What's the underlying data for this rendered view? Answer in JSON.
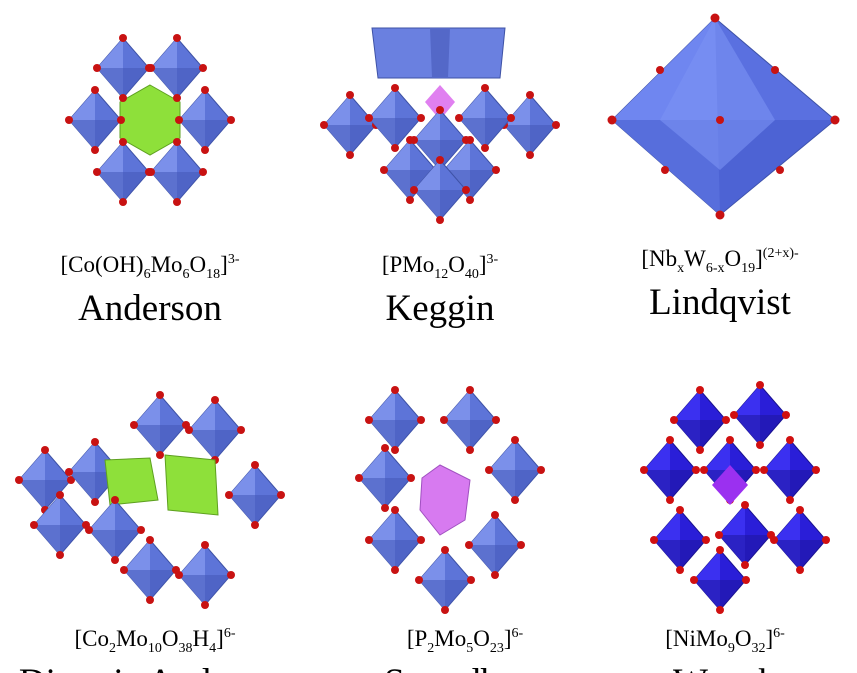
{
  "items": [
    {
      "formula": [
        {
          "text": "[Co(OH)",
          "style": "base"
        },
        {
          "text": "6",
          "style": "sub"
        },
        {
          "text": "Mo",
          "style": "base"
        },
        {
          "text": "6",
          "style": "sub"
        },
        {
          "text": "O",
          "style": "base"
        },
        {
          "text": "18",
          "style": "sub"
        },
        {
          "text": "]",
          "style": "base"
        },
        {
          "text": "3-",
          "style": "sup"
        }
      ],
      "name": "Anderson"
    },
    {
      "formula": [
        {
          "text": "[PMo",
          "style": "base"
        },
        {
          "text": "12",
          "style": "sub"
        },
        {
          "text": "O",
          "style": "base"
        },
        {
          "text": "40",
          "style": "sub"
        },
        {
          "text": "]",
          "style": "base"
        },
        {
          "text": "3-",
          "style": "sup"
        }
      ],
      "name": "Keggin"
    },
    {
      "formula": [
        {
          "text": "[Nb",
          "style": "base"
        },
        {
          "text": "x",
          "style": "sub"
        },
        {
          "text": "W",
          "style": "base"
        },
        {
          "text": "6-x",
          "style": "sub"
        },
        {
          "text": "O",
          "style": "base"
        },
        {
          "text": "19",
          "style": "sub"
        },
        {
          "text": "]",
          "style": "base"
        },
        {
          "text": "(2+x)-",
          "style": "sup"
        }
      ],
      "name": "Lindqvist"
    },
    {
      "formula": [
        {
          "text": "[Co",
          "style": "base"
        },
        {
          "text": "2",
          "style": "sub"
        },
        {
          "text": "Mo",
          "style": "base"
        },
        {
          "text": "10",
          "style": "sub"
        },
        {
          "text": "O",
          "style": "base"
        },
        {
          "text": "38",
          "style": "sub"
        },
        {
          "text": "H",
          "style": "base"
        },
        {
          "text": "4",
          "style": "sub"
        },
        {
          "text": "]",
          "style": "base"
        },
        {
          "text": "6-",
          "style": "sup"
        }
      ],
      "name": "Dimeric Anderson"
    },
    {
      "formula": [
        {
          "text": "[P",
          "style": "base"
        },
        {
          "text": "2",
          "style": "sub"
        },
        {
          "text": "Mo",
          "style": "base"
        },
        {
          "text": "5",
          "style": "sub"
        },
        {
          "text": "O",
          "style": "base"
        },
        {
          "text": "23",
          "style": "sub"
        },
        {
          "text": "]",
          "style": "base"
        },
        {
          "text": "6-",
          "style": "sup"
        }
      ],
      "name": "Strandberg"
    },
    {
      "formula": [
        {
          "text": "[NiMo",
          "style": "base"
        },
        {
          "text": "9",
          "style": "sub"
        },
        {
          "text": "O",
          "style": "base"
        },
        {
          "text": "32",
          "style": "sub"
        },
        {
          "text": "]",
          "style": "base"
        },
        {
          "text": "6-",
          "style": "sup"
        }
      ],
      "name": "Waugh"
    }
  ]
}
